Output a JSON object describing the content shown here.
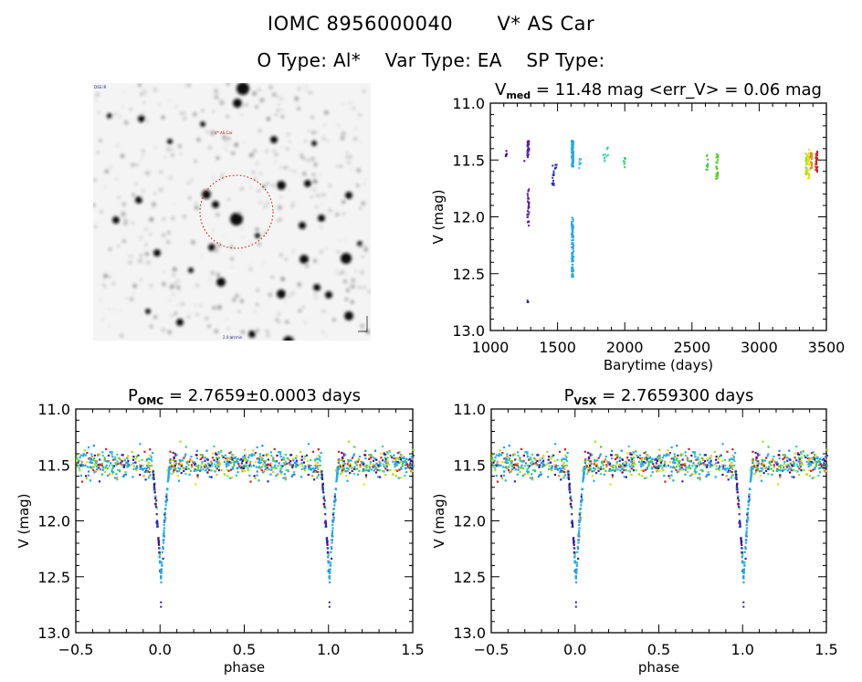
{
  "header": {
    "catalog_id": "IOMC 8956000040",
    "star_name": "V* AS Car",
    "o_type": "O Type: Al*",
    "var_type": "Var Type: EA",
    "sp_type": "SP Type:"
  },
  "sky_image": {
    "corner_label_top_left": "DSS IR",
    "center_label": "V* AS Car",
    "bottom_label": "2.0 arcmin",
    "circle_color": "#cc0000"
  },
  "chart_data": [
    {
      "id": "time-series",
      "type": "scatter",
      "title_main": "V",
      "title_sub": "med",
      "title_rest": " = 11.48 mag <err_V> = 0.06 mag",
      "xlabel": "Barytime (days)",
      "ylabel": "V (mag)",
      "xlim": [
        1000,
        3500
      ],
      "ylim": [
        13.0,
        11.0
      ],
      "y_inverted": true,
      "xticks": [
        1000,
        1500,
        2000,
        2500,
        3000,
        3500
      ],
      "xtick_labels": [
        "1000",
        "1500",
        "2000",
        "2500",
        "3000",
        "3500"
      ],
      "yticks": [
        11.0,
        11.5,
        12.0,
        12.5,
        13.0
      ],
      "ytick_labels": [
        "11.0",
        "11.5",
        "12.0",
        "12.5",
        "13.0"
      ],
      "groups": [
        {
          "x": 1110,
          "y_range": [
            11.4,
            11.46
          ],
          "n": 5,
          "color": "#4b0080"
        },
        {
          "x": 1240,
          "y": 11.5,
          "n": 1,
          "color": "#4b0080"
        },
        {
          "x": 1275,
          "y_range": [
            11.32,
            12.08
          ],
          "n": 70,
          "color": "#5a1fa8"
        },
        {
          "x": 1275,
          "y_range": [
            12.72,
            12.76
          ],
          "n": 3,
          "color": "#3a1a8c"
        },
        {
          "x": 1460,
          "y_range": [
            11.52,
            11.74
          ],
          "n": 12,
          "color": "#2a2ab8"
        },
        {
          "x": 1480,
          "y_range": [
            11.49,
            11.58
          ],
          "n": 5,
          "color": "#2a2ab8"
        },
        {
          "x": 1605,
          "y_range": [
            11.32,
            12.52
          ],
          "n": 180,
          "color": "#22aaea"
        },
        {
          "x": 1660,
          "y_range": [
            11.48,
            11.58
          ],
          "n": 8,
          "color": "#30c8e0"
        },
        {
          "x": 1840,
          "y_range": [
            11.44,
            11.52
          ],
          "n": 6,
          "color": "#30d8b0"
        },
        {
          "x": 1865,
          "y_range": [
            11.38,
            11.48
          ],
          "n": 5,
          "color": "#30d8a0"
        },
        {
          "x": 1990,
          "y_range": [
            11.47,
            11.56
          ],
          "n": 8,
          "color": "#30d070"
        },
        {
          "x": 2605,
          "y_range": [
            11.44,
            11.58
          ],
          "n": 10,
          "color": "#40d040"
        },
        {
          "x": 2680,
          "y_range": [
            11.44,
            11.66
          ],
          "n": 25,
          "color": "#50d020"
        },
        {
          "x": 3345,
          "y_range": [
            11.42,
            11.62
          ],
          "n": 25,
          "color": "#a0e020"
        },
        {
          "x": 3360,
          "y_range": [
            11.4,
            11.66
          ],
          "n": 30,
          "color": "#e8e000"
        },
        {
          "x": 3380,
          "y_range": [
            11.42,
            11.58
          ],
          "n": 25,
          "color": "#e09020"
        },
        {
          "x": 3420,
          "y_range": [
            11.4,
            11.6
          ],
          "n": 30,
          "color": "#d02020"
        }
      ]
    },
    {
      "id": "phase-omc",
      "type": "scatter",
      "title_main": "P",
      "title_sub": "OMC",
      "title_rest": " = 2.7659±0.0003 days",
      "period_days": 2.7659,
      "period_err_days": 0.0003,
      "xlabel": "phase",
      "ylabel": "V (mag)",
      "xlim": [
        -0.5,
        1.5
      ],
      "ylim": [
        13.0,
        11.0
      ],
      "y_inverted": true,
      "xticks": [
        -0.5,
        0.0,
        0.5,
        1.0,
        1.5
      ],
      "xtick_labels": [
        "−0.5",
        "0.0",
        "0.5",
        "1.0",
        "1.5"
      ],
      "yticks": [
        11.0,
        11.5,
        12.0,
        12.5,
        13.0
      ],
      "ytick_labels": [
        "11.0",
        "11.5",
        "12.0",
        "12.5",
        "13.0"
      ],
      "baseline_mag": 11.48,
      "baseline_scatter": 0.06,
      "eclipse_phase": 0.0,
      "eclipse_depth_mag": 12.5,
      "outlier_mag": 12.74,
      "colors": [
        "#22aaea",
        "#22aaea",
        "#22aaea",
        "#2288ee",
        "#d02020",
        "#e09020",
        "#e8e000",
        "#a0e020",
        "#40d040",
        "#30d8b0",
        "#2a2ab8",
        "#4b0080"
      ]
    },
    {
      "id": "phase-vsx",
      "type": "scatter",
      "title_main": "P",
      "title_sub": "VSX",
      "title_rest": " = 2.7659300 days",
      "period_days": 2.76593,
      "xlabel": "phase",
      "ylabel": "V (mag)",
      "xlim": [
        -0.5,
        1.5
      ],
      "ylim": [
        13.0,
        11.0
      ],
      "y_inverted": true,
      "xticks": [
        -0.5,
        0.0,
        0.5,
        1.0,
        1.5
      ],
      "xtick_labels": [
        "−0.5",
        "0.0",
        "0.5",
        "1.0",
        "1.5"
      ],
      "yticks": [
        11.0,
        11.5,
        12.0,
        12.5,
        13.0
      ],
      "ytick_labels": [
        "11.0",
        "11.5",
        "12.0",
        "12.5",
        "13.0"
      ],
      "baseline_mag": 11.48,
      "baseline_scatter": 0.06,
      "eclipse_phase": 0.0,
      "eclipse_depth_mag": 12.5,
      "outlier_mag": 12.74,
      "colors": [
        "#22aaea",
        "#22aaea",
        "#22aaea",
        "#2288ee",
        "#d02020",
        "#e09020",
        "#e8e000",
        "#a0e020",
        "#40d040",
        "#30d8b0",
        "#2a2ab8",
        "#4b0080"
      ]
    }
  ]
}
